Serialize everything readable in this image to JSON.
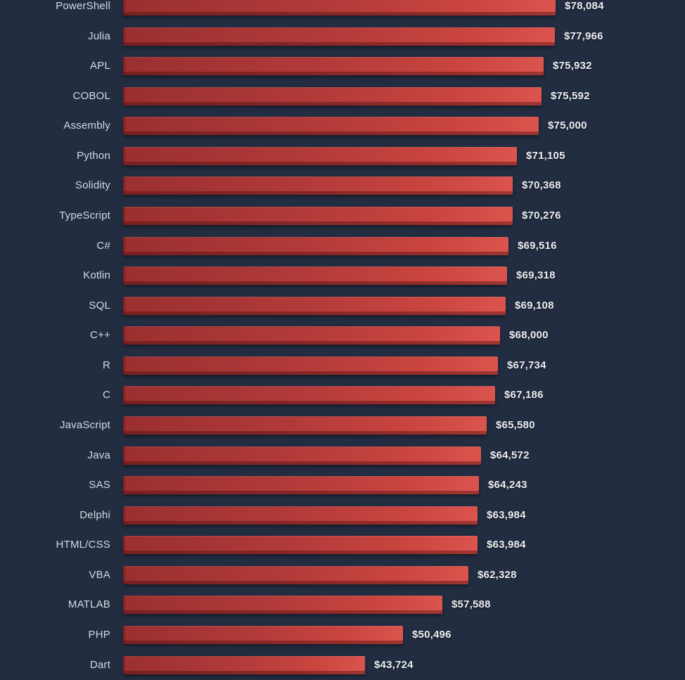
{
  "page": {
    "background_color": "#222d42"
  },
  "chart_data": {
    "type": "bar",
    "orientation": "horizontal",
    "title": "",
    "xlabel": "",
    "ylabel": "",
    "grid": false,
    "legend": false,
    "xlim": [
      0,
      78084
    ],
    "categories": [
      "PowerShell",
      "Julia",
      "APL",
      "COBOL",
      "Assembly",
      "Python",
      "Solidity",
      "TypeScript",
      "C#",
      "Kotlin",
      "SQL",
      "C++",
      "R",
      "C",
      "JavaScript",
      "Java",
      "SAS",
      "Delphi",
      "HTML/CSS",
      "VBA",
      "MATLAB",
      "PHP",
      "Dart"
    ],
    "values": [
      78084,
      77966,
      75932,
      75592,
      75000,
      71105,
      70368,
      70276,
      69516,
      69318,
      69108,
      68000,
      67734,
      67186,
      65580,
      64572,
      64243,
      63984,
      63984,
      62328,
      57588,
      50496,
      43724
    ],
    "value_labels": [
      "$78,084",
      "$77,966",
      "$75,932",
      "$75,592",
      "$75,000",
      "$71,105",
      "$70,368",
      "$70,276",
      "$69,516",
      "$69,318",
      "$69,108",
      "$68,000",
      "$67,734",
      "$67,186",
      "$65,580",
      "$64,572",
      "$64,243",
      "$63,984",
      "$63,984",
      "$62,328",
      "$57,588",
      "$50,496",
      "$43,724"
    ],
    "colors": {
      "bar_gradient_start": "#9a2f30",
      "bar_gradient_end": "#db544e",
      "bar_bevel": "#7d2827",
      "category_label": "#d5dae1",
      "value_label": "#edeff1",
      "background": "#222d42"
    }
  }
}
